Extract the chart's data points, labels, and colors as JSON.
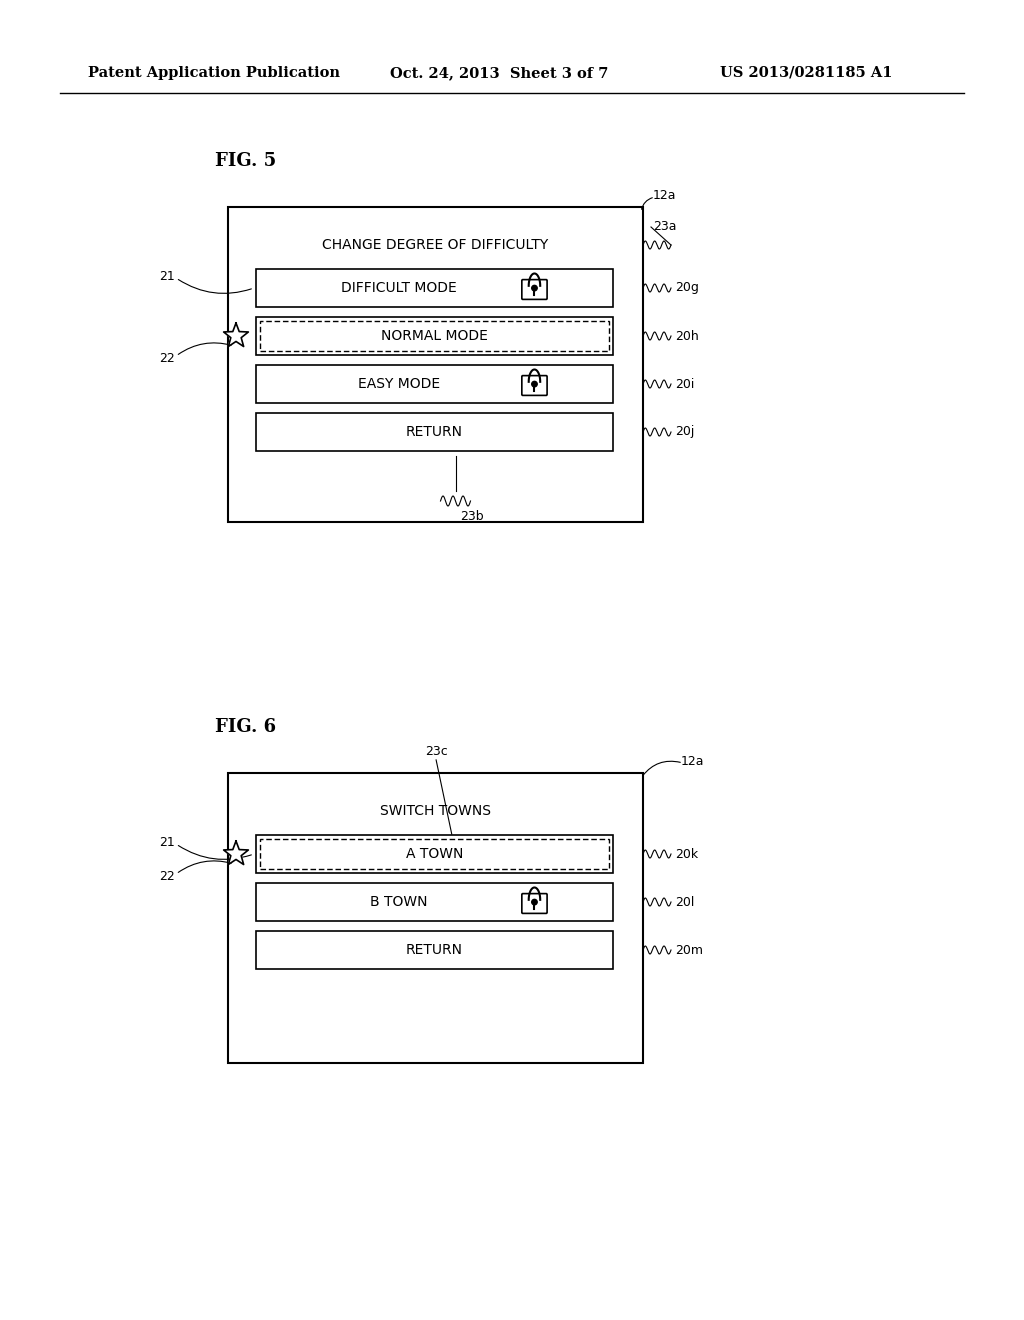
{
  "bg_color": "#ffffff",
  "header_left": "Patent Application Publication",
  "header_mid": "Oct. 24, 2013  Sheet 3 of 7",
  "header_right": "US 2013/0281185 A1",
  "fig5_label": "FIG. 5",
  "fig6_label": "FIG. 6",
  "fig5": {
    "title_text": "CHANGE DEGREE OF DIFFICULTY",
    "buttons": [
      {
        "text": "DIFFICULT MODE",
        "has_lock": true,
        "selected": false,
        "label": "20g"
      },
      {
        "text": "NORMAL MODE",
        "has_lock": false,
        "selected": true,
        "label": "20h"
      },
      {
        "text": "EASY MODE",
        "has_lock": true,
        "selected": false,
        "label": "20i"
      },
      {
        "text": "RETURN",
        "has_lock": false,
        "selected": false,
        "label": "20j"
      }
    ],
    "label_12a": "12a",
    "label_23a": "23a",
    "label_23b": "23b",
    "label_21": "21",
    "label_22": "22"
  },
  "fig6": {
    "title_text": "SWITCH TOWNS",
    "buttons": [
      {
        "text": "A TOWN",
        "has_lock": false,
        "selected": true,
        "label": "20k"
      },
      {
        "text": "B TOWN",
        "has_lock": true,
        "selected": false,
        "label": "20l"
      },
      {
        "text": "RETURN",
        "has_lock": false,
        "selected": false,
        "label": "20m"
      }
    ],
    "label_12a": "12a",
    "label_23c": "23c",
    "label_21": "21",
    "label_22": "22"
  }
}
